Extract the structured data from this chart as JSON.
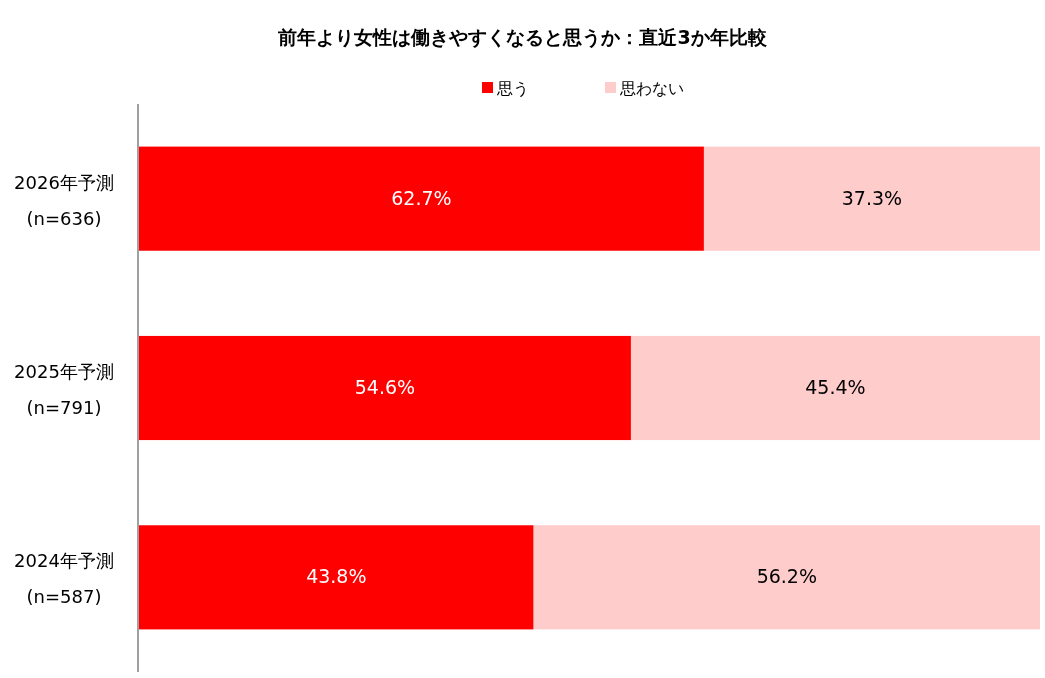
{
  "chart_data": {
    "type": "bar",
    "orientation": "horizontal",
    "stacked": true,
    "title": "前年より女性は働きやすくなると思うか：直近3か年比較",
    "categories": [
      "2026年予測\n(n=636)",
      "2025年予測\n(n=791)",
      "2024年予測\n(n=587)"
    ],
    "series": [
      {
        "name": "思う",
        "color": "#ff0000",
        "values": [
          62.7,
          54.6,
          43.8
        ],
        "value_labels": [
          "62.7%",
          "54.6%",
          "43.8%"
        ]
      },
      {
        "name": "思わない",
        "color": "#ffcccc",
        "values": [
          37.3,
          45.4,
          56.2
        ],
        "value_labels": [
          "37.3%",
          "45.4%",
          "56.2%"
        ]
      }
    ],
    "xlim": [
      0,
      100
    ],
    "tick_labels": "y",
    "legend": "top"
  }
}
